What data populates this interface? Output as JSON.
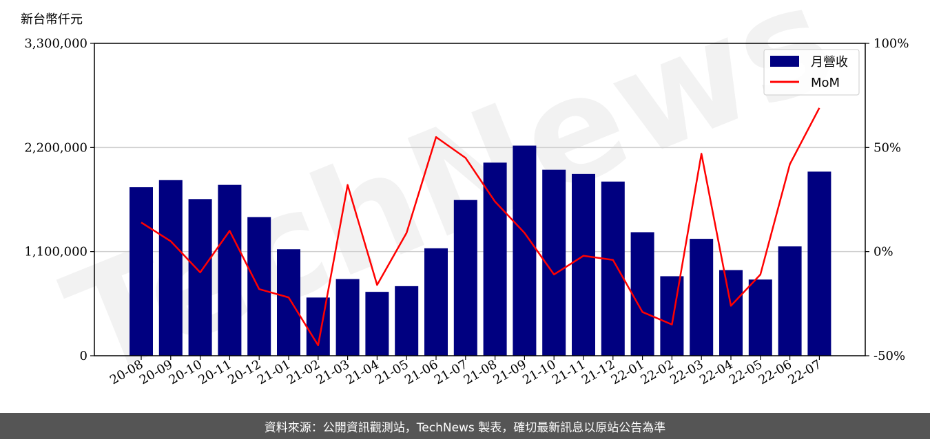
{
  "unit_label": "新台幣仟元",
  "footer_text": "資料來源：公開資訊觀測站，TechNews 製表，確切最新訊息以原站公告為準",
  "watermark": "TechNews",
  "colors": {
    "bar": "#000080",
    "line": "#ff0000",
    "grid": "#d0d0d0",
    "footer_bg": "#555555"
  },
  "chart_data": {
    "type": "bar",
    "categories": [
      "20-08",
      "20-09",
      "20-10",
      "20-11",
      "20-12",
      "21-01",
      "21-02",
      "21-03",
      "21-04",
      "21-05",
      "21-06",
      "21-07",
      "21-08",
      "21-09",
      "21-10",
      "21-11",
      "21-12",
      "22-01",
      "22-02",
      "22-03",
      "22-04",
      "22-05",
      "22-06",
      "22-07"
    ],
    "series": [
      {
        "name": "月營收",
        "type": "bar",
        "axis": "left",
        "values": [
          1780000,
          1855000,
          1655000,
          1805000,
          1465000,
          1125000,
          615000,
          810000,
          675000,
          735000,
          1135000,
          1645000,
          2040000,
          2220000,
          1965000,
          1920000,
          1840000,
          1305000,
          840000,
          1235000,
          905000,
          805000,
          1155000,
          1945000
        ]
      },
      {
        "name": "MoM",
        "type": "line",
        "axis": "right",
        "values": [
          14,
          5,
          -10,
          10,
          -18,
          -22,
          -45,
          32,
          -16,
          9,
          55,
          45,
          24,
          9,
          -11,
          -2,
          -4,
          -29,
          -35,
          47,
          -26,
          -11,
          42,
          69
        ]
      }
    ],
    "y_left": {
      "min": 0,
      "max": 3300000,
      "ticks": [
        0,
        1100000,
        2200000,
        3300000
      ],
      "tick_labels": [
        "0",
        "1,100,000",
        "2,200,000",
        "3,300,000"
      ]
    },
    "y_right": {
      "min": -50,
      "max": 100,
      "ticks": [
        -50,
        0,
        50,
        100
      ],
      "tick_labels": [
        "-50%",
        "0%",
        "50%",
        "100%"
      ]
    },
    "grid": "horizontal",
    "legend_position": "top-right"
  }
}
